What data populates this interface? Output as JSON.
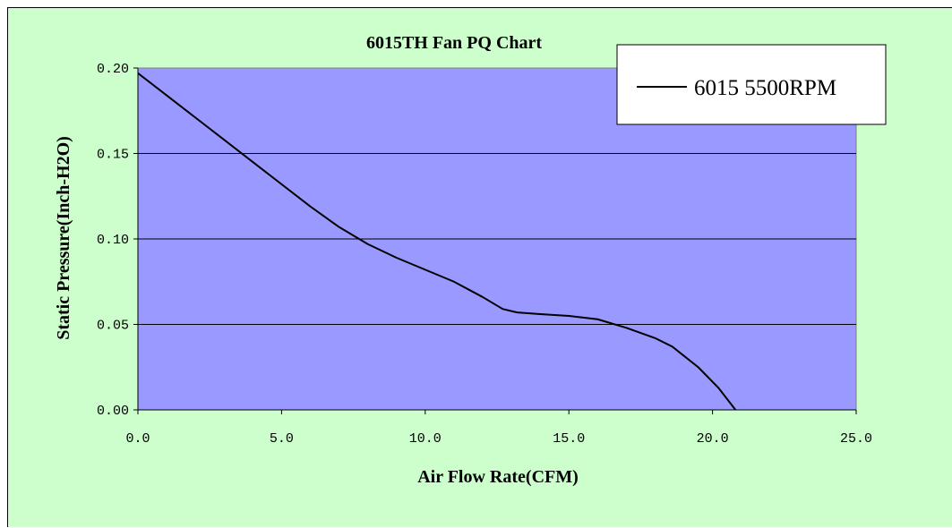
{
  "chart_data": {
    "type": "line",
    "title": "6015TH  Fan PQ Chart",
    "xlabel": "Air Flow Rate(CFM)",
    "ylabel": "Static Pressure(Inch-H2O)",
    "xlim": [
      0,
      25
    ],
    "ylim": [
      0,
      0.2
    ],
    "xticks": [
      "0.0",
      "5.0",
      "10.0",
      "15.0",
      "20.0",
      "25.0"
    ],
    "yticks": [
      "0.00",
      "0.05",
      "0.10",
      "0.15",
      "0.20"
    ],
    "grid": "horizontal",
    "legend_position": "top-right",
    "colors": {
      "background": "#ccffcc",
      "plot_area": "#9999ff",
      "line": "#000000"
    },
    "series": [
      {
        "name": "6015  5500RPM",
        "x": [
          0,
          1,
          2,
          3,
          4,
          5,
          6,
          7,
          8,
          9,
          10,
          11,
          12,
          12.7,
          13.2,
          14,
          15,
          16,
          17,
          18,
          18.6,
          19.5,
          20.2,
          20.8
        ],
        "y": [
          0.197,
          0.184,
          0.171,
          0.158,
          0.145,
          0.132,
          0.119,
          0.107,
          0.097,
          0.089,
          0.082,
          0.075,
          0.066,
          0.059,
          0.057,
          0.056,
          0.055,
          0.053,
          0.048,
          0.042,
          0.037,
          0.025,
          0.013,
          0.0
        ]
      }
    ]
  }
}
